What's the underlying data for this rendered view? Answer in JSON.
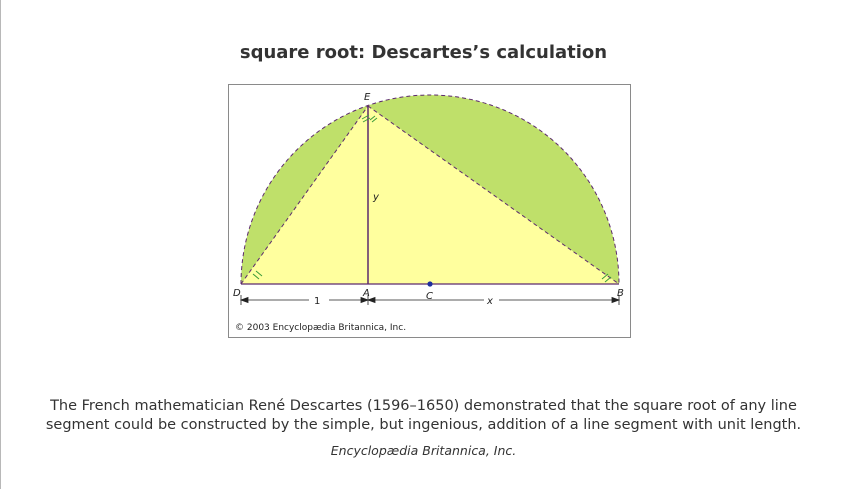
{
  "title": "square root: Descartes’s calculation",
  "diagram": {
    "points": {
      "E": "E",
      "D": "D",
      "A": "A",
      "C": "C",
      "B": "B"
    },
    "segment_labels": {
      "y": "y",
      "one": "1",
      "x": "x"
    },
    "copyright": "© 2003 Encyclopædia Britannica, Inc.",
    "colors": {
      "semicircle_fill": "#bfe06a",
      "triangle_fill": "#ffff9e",
      "line": "#5c2a6e",
      "center_dot": "#1f2f9e"
    }
  },
  "caption": {
    "text": "The French mathematician René Descartes (1596–1650) demonstrated that the square root of any line segment could be constructed by the simple, but ingenious, addition of a line segment with unit length.",
    "source": "Encyclopædia Britannica, Inc."
  }
}
